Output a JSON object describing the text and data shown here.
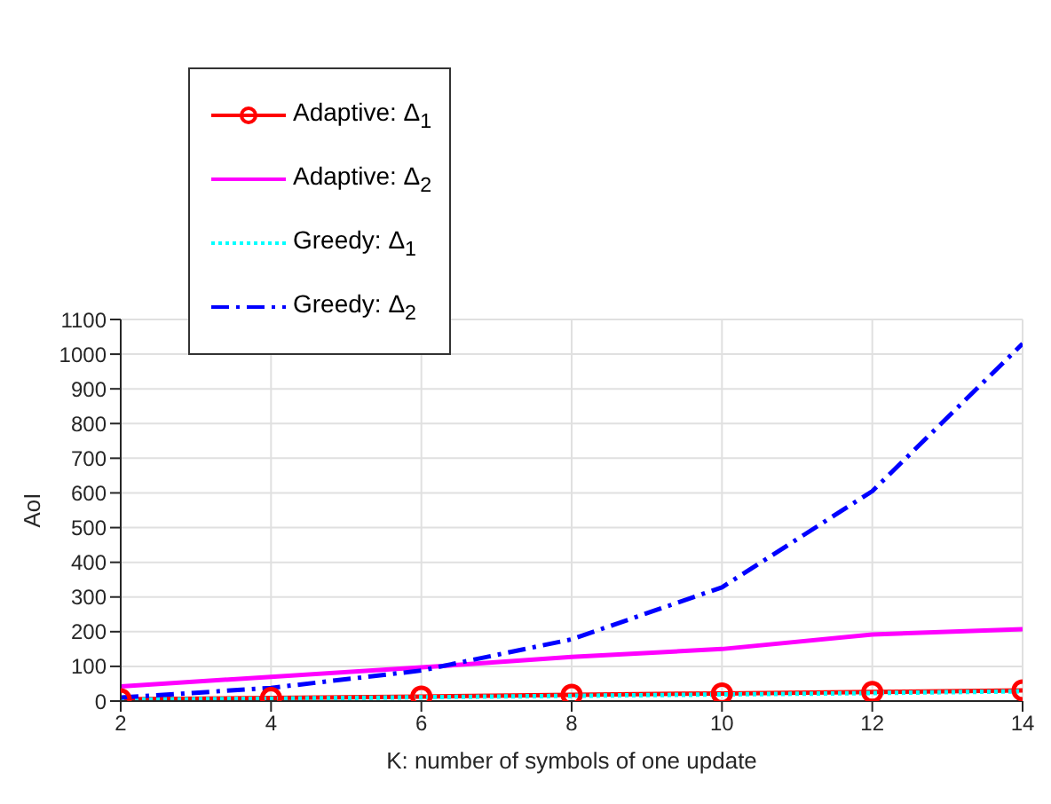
{
  "chart_data": {
    "type": "line",
    "xlabel": "K: number of symbols of one update",
    "ylabel": "AoI",
    "x": [
      2,
      4,
      6,
      8,
      10,
      12,
      14
    ],
    "xlim": [
      2,
      14
    ],
    "xticks": [
      2,
      4,
      6,
      8,
      10,
      12,
      14
    ],
    "ylim": [
      0,
      1100
    ],
    "yticks": [
      0,
      100,
      200,
      300,
      400,
      500,
      600,
      700,
      800,
      900,
      1000,
      1100
    ],
    "grid": true,
    "legend": "top left",
    "series": [
      {
        "name": "Adaptive: Δ$_{1}$",
        "color": "#ff0000",
        "marker": "circle",
        "line_style": "solid",
        "values": [
          5,
          9,
          13,
          18,
          22,
          26,
          31
        ]
      },
      {
        "name": "Adaptive: Δ$_{2}$",
        "color": "#ff00ff",
        "marker": "none",
        "line_style": "solid",
        "values": [
          42,
          70,
          97,
          127,
          150,
          192,
          207
        ]
      },
      {
        "name": "Greedy: Δ$_{1}$",
        "color": "#00ffff",
        "marker": "none",
        "line_style": "dotted",
        "values": [
          4,
          7,
          11,
          15,
          19,
          23,
          28
        ]
      },
      {
        "name": "Greedy: Δ$_{2}$",
        "color": "#0000ff",
        "marker": "none",
        "line_style": "dashed",
        "values": [
          10,
          38,
          88,
          178,
          328,
          605,
          1030
        ]
      }
    ]
  }
}
